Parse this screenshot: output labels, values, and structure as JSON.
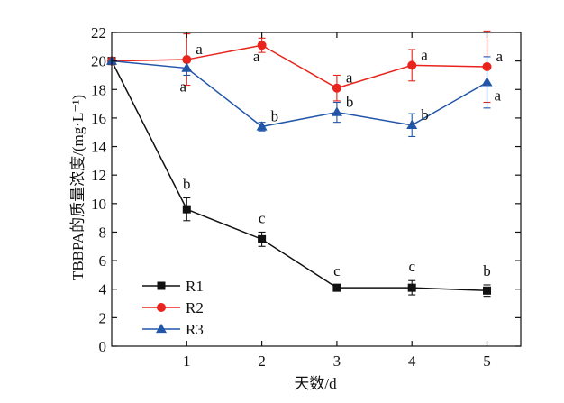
{
  "chart_data": {
    "type": "line",
    "xlabel": "天数/d",
    "ylabel": "TBBPA的质量浓度/(mg·L⁻¹)",
    "xlim": [
      0,
      5.45
    ],
    "ylim": [
      0,
      22
    ],
    "x_ticks": [
      1,
      2,
      3,
      4,
      5
    ],
    "x_tick_labels": [
      "1",
      "2",
      "3",
      "4",
      "5"
    ],
    "y_ticks": [
      0,
      2,
      4,
      6,
      8,
      10,
      12,
      14,
      16,
      18,
      20,
      22
    ],
    "y_tick_labels": [
      "0",
      "2",
      "4",
      "6",
      "8",
      "10",
      "12",
      "14",
      "16",
      "18",
      "20",
      "22"
    ],
    "grid": false,
    "legend_position": "bottom-left",
    "x": [
      0,
      1,
      2,
      3,
      4,
      5
    ],
    "series": [
      {
        "name": "R1",
        "color": "#111111",
        "marker": "square",
        "values": [
          20.0,
          9.6,
          7.5,
          4.1,
          4.1,
          3.9
        ],
        "errors": [
          0.2,
          0.8,
          0.5,
          0.2,
          0.5,
          0.4
        ],
        "labels": [
          "",
          "b",
          "c",
          "c",
          "c",
          "b"
        ]
      },
      {
        "name": "R2",
        "color": "#e8241c",
        "marker": "circle",
        "values": [
          20.0,
          20.1,
          21.1,
          18.1,
          19.7,
          19.6
        ],
        "errors": [
          0.2,
          1.8,
          0.5,
          0.9,
          1.1,
          2.5
        ],
        "labels": [
          "",
          "a",
          "a",
          "a",
          "a",
          "a"
        ]
      },
      {
        "name": "R3",
        "color": "#2155a8",
        "marker": "triangle",
        "values": [
          20.0,
          19.5,
          15.4,
          16.4,
          15.5,
          18.5
        ],
        "errors": [
          0.2,
          0.5,
          0.3,
          0.7,
          0.8,
          1.8
        ],
        "labels": [
          "",
          "a",
          "b",
          "b",
          "b",
          "a"
        ]
      }
    ]
  }
}
